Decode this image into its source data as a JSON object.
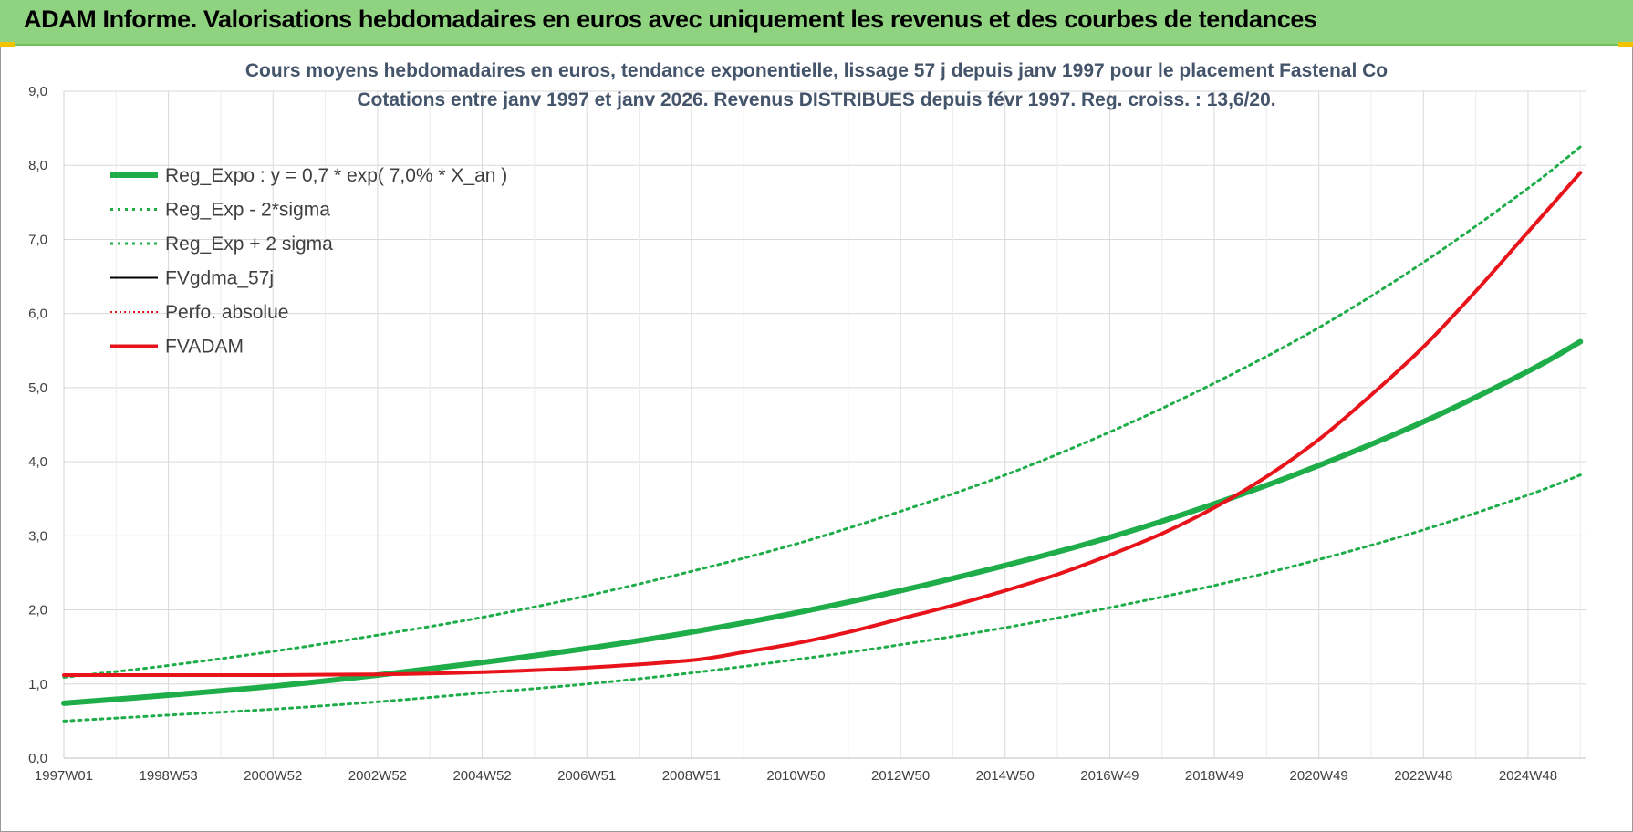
{
  "header": {
    "title": "ADAM Informe. Valorisations hebdomadaires en euros avec uniquement les revenus et des courbes de tendances"
  },
  "colors": {
    "banner": "#8fd27f",
    "green": "#1fad4a",
    "red": "#e8141b",
    "black": "#000000",
    "grid": "#d9d9d9"
  },
  "chart_data": {
    "type": "line",
    "title_lines": [
      "Cours moyens hebdomadaires en euros, tendance exponentielle, lissage 57 j depuis janv 1997 pour le placement Fastenal Co",
      "Cotations entre janv 1997 et janv 2026. Revenus DISTRIBUES depuis févr 1997. Reg. croiss. : 13,6/20."
    ],
    "xlabel": "",
    "ylabel": "",
    "ylim": [
      0,
      9
    ],
    "yticks": [
      "0,0",
      "1,0",
      "2,0",
      "3,0",
      "4,0",
      "5,0",
      "6,0",
      "7,0",
      "8,0",
      "9,0"
    ],
    "xlim": [
      1997.0,
      2026.1
    ],
    "xtick_positions": [
      1997.0,
      1999.0,
      2001.0,
      2003.0,
      2005.0,
      2007.0,
      2009.0,
      2011.0,
      2013.0,
      2015.0,
      2017.0,
      2019.0,
      2021.0,
      2023.0,
      2025.0
    ],
    "xtick_labels": [
      "1997W01",
      "1998W53",
      "2000W52",
      "2002W52",
      "2004W52",
      "2006W51",
      "2008W51",
      "2010W50",
      "2012W50",
      "2014W50",
      "2016W49",
      "2018W49",
      "2020W49",
      "2022W48",
      "2024W48"
    ],
    "grid": true,
    "legend_position": "top-left",
    "legend": [
      {
        "label": "Reg_Expo : y = 0,7 * exp( 7,0% *  X_an )",
        "color": "#1fad4a",
        "style": "solid-thick"
      },
      {
        "label": "Reg_Exp - 2*sigma",
        "color": "#1fad4a",
        "style": "dotted"
      },
      {
        "label": "Reg_Exp + 2 sigma",
        "color": "#1fad4a",
        "style": "dotted"
      },
      {
        "label": "FVgdma_57j",
        "color": "#000000",
        "style": "solid"
      },
      {
        "label": "Perfo. absolue",
        "color": "#e8141b",
        "style": "dotted"
      },
      {
        "label": "FVADAM",
        "color": "#e8141b",
        "style": "solid-thick"
      }
    ],
    "series": [
      {
        "name": "Reg_Expo : y = 0,7 * exp( 7,0% *  X_an )",
        "x": [
          1997,
          1999,
          2001,
          2003,
          2005,
          2007,
          2009,
          2011,
          2013,
          2015,
          2017,
          2019,
          2021,
          2023,
          2025,
          2026
        ],
        "values": [
          0.74,
          0.85,
          0.97,
          1.12,
          1.29,
          1.48,
          1.7,
          1.96,
          2.26,
          2.6,
          2.98,
          3.43,
          3.95,
          4.54,
          5.22,
          5.62
        ]
      },
      {
        "name": "Reg_Exp - 2*sigma",
        "x": [
          1997,
          1999,
          2001,
          2003,
          2005,
          2007,
          2009,
          2011,
          2013,
          2015,
          2017,
          2019,
          2021,
          2023,
          2025,
          2026
        ],
        "values": [
          0.5,
          0.58,
          0.66,
          0.76,
          0.88,
          1.0,
          1.15,
          1.33,
          1.53,
          1.76,
          2.03,
          2.33,
          2.68,
          3.08,
          3.55,
          3.82
        ]
      },
      {
        "name": "Reg_Exp + 2 sigma",
        "x": [
          1997,
          1999,
          2001,
          2003,
          2005,
          2007,
          2009,
          2011,
          2013,
          2015,
          2017,
          2019,
          2021,
          2023,
          2025,
          2026
        ],
        "values": [
          1.09,
          1.25,
          1.44,
          1.66,
          1.9,
          2.19,
          2.52,
          2.89,
          3.33,
          3.82,
          4.4,
          5.06,
          5.81,
          6.69,
          7.69,
          8.25
        ]
      },
      {
        "name": "FVgdma_57j",
        "x": [
          1997,
          1999,
          2001,
          2003,
          2005,
          2007,
          2009,
          2010,
          2011,
          2012,
          2013,
          2014,
          2015,
          2016,
          2017,
          2018,
          2019,
          2020,
          2021,
          2022,
          2023,
          2024,
          2025,
          2026
        ],
        "values": [
          1.12,
          1.12,
          1.12,
          1.13,
          1.16,
          1.22,
          1.32,
          1.43,
          1.55,
          1.7,
          1.88,
          2.06,
          2.26,
          2.48,
          2.74,
          3.03,
          3.38,
          3.8,
          4.3,
          4.9,
          5.55,
          6.3,
          7.1,
          7.9
        ]
      },
      {
        "name": "Perfo. absolue",
        "x": [
          1997,
          1999,
          2001,
          2003,
          2005,
          2007,
          2009,
          2010,
          2011,
          2012,
          2013,
          2014,
          2015,
          2016,
          2017,
          2018,
          2019,
          2020,
          2021,
          2022,
          2023,
          2024,
          2025,
          2026
        ],
        "values": [
          1.12,
          1.12,
          1.12,
          1.13,
          1.16,
          1.22,
          1.32,
          1.43,
          1.55,
          1.7,
          1.88,
          2.06,
          2.26,
          2.48,
          2.74,
          3.03,
          3.38,
          3.8,
          4.3,
          4.9,
          5.55,
          6.3,
          7.1,
          7.9
        ]
      },
      {
        "name": "FVADAM",
        "x": [
          1997,
          1999,
          2001,
          2003,
          2005,
          2007,
          2009,
          2010,
          2011,
          2012,
          2013,
          2014,
          2015,
          2016,
          2017,
          2018,
          2019,
          2020,
          2021,
          2022,
          2023,
          2024,
          2025,
          2026
        ],
        "values": [
          1.12,
          1.12,
          1.12,
          1.13,
          1.16,
          1.22,
          1.32,
          1.43,
          1.55,
          1.7,
          1.88,
          2.06,
          2.26,
          2.48,
          2.74,
          3.03,
          3.38,
          3.8,
          4.3,
          4.9,
          5.55,
          6.3,
          7.1,
          7.9
        ]
      }
    ]
  }
}
